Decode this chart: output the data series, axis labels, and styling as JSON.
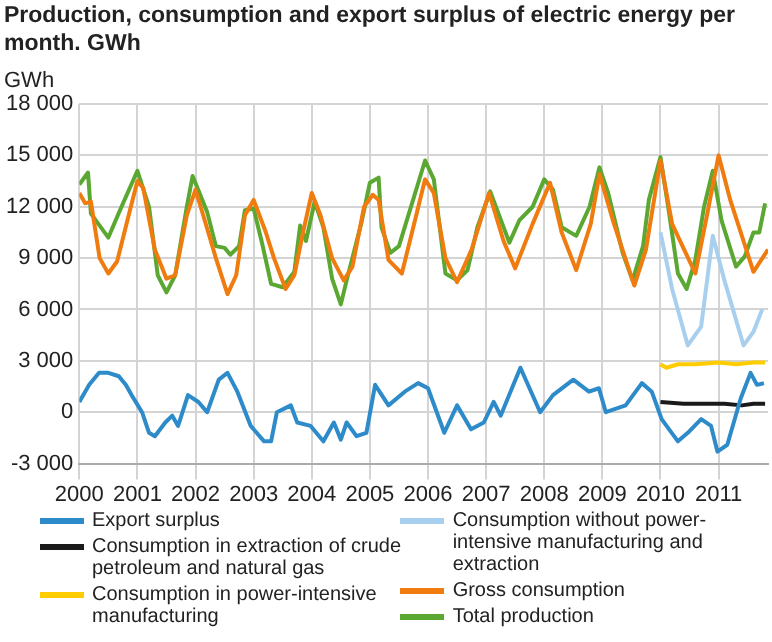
{
  "chart_data": {
    "type": "line",
    "title": "Production, consumption and export surplus of electric energy per month. GWh",
    "ylabel": "GWh",
    "xlim": [
      2000,
      2011.85
    ],
    "xticks": [
      2000,
      2001,
      2002,
      2003,
      2004,
      2005,
      2006,
      2007,
      2008,
      2009,
      2010,
      2011
    ],
    "ylim": [
      -3000,
      18000
    ],
    "yticks": [
      {
        "value": -3000,
        "label": "-3 000"
      },
      {
        "value": 0,
        "label": "0"
      },
      {
        "value": 3000,
        "label": "3 000"
      },
      {
        "value": 6000,
        "label": "6 000"
      },
      {
        "value": 9000,
        "label": "9 000"
      },
      {
        "value": 12000,
        "label": "12 000"
      },
      {
        "value": 15000,
        "label": "15 000"
      },
      {
        "value": 18000,
        "label": "18 000"
      }
    ],
    "grid": true,
    "legend": "bottom",
    "marker": "none",
    "line_style": "solid",
    "series": [
      {
        "name": "Export surplus",
        "color": "#2e8bc9",
        "x": [
          2000,
          2000.17,
          2000.34,
          2000.5,
          2000.68,
          2000.8,
          2000.9,
          2001.08,
          2001.2,
          2001.3,
          2001.48,
          2001.6,
          2001.7,
          2001.87,
          2002.05,
          2002.2,
          2002.4,
          2002.55,
          2002.72,
          2002.95,
          2003.18,
          2003.3,
          2003.4,
          2003.64,
          2003.75,
          2003.98,
          2004.2,
          2004.38,
          2004.5,
          2004.6,
          2004.77,
          2004.94,
          2005.09,
          2005.32,
          2005.6,
          2005.83,
          2006,
          2006.28,
          2006.5,
          2006.74,
          2006.96,
          2007.13,
          2007.25,
          2007.59,
          2007.93,
          2008.15,
          2008.5,
          2008.77,
          2008.94,
          2009.06,
          2009.4,
          2009.68,
          2009.85,
          2010.02,
          2010.3,
          2010.47,
          2010.7,
          2010.87,
          2010.98,
          2011.15,
          2011.38,
          2011.55,
          2011.66,
          2011.78
        ],
        "values": [
          600,
          1600,
          2300,
          2300,
          2100,
          1600,
          1000,
          0,
          -1200,
          -1400,
          -600,
          -200,
          -800,
          1000,
          600,
          0,
          1900,
          2300,
          1200,
          -800,
          -1700,
          -1700,
          0,
          400,
          -600,
          -800,
          -1700,
          -600,
          -1600,
          -600,
          -1400,
          -1200,
          1600,
          400,
          1200,
          1700,
          1400,
          -1200,
          400,
          -1000,
          -600,
          600,
          -200,
          2600,
          0,
          1000,
          1900,
          1200,
          1400,
          0,
          400,
          1700,
          1200,
          -400,
          -1700,
          -1200,
          -400,
          -800,
          -2300,
          -1900,
          800,
          2300,
          1600,
          1700
        ]
      },
      {
        "name": "Consumption in extraction of crude petroleum and natural gas",
        "color": "#1a1a1a",
        "x": [
          2010,
          2010.4,
          2010.7,
          2011.1,
          2011.4,
          2011.6,
          2011.8
        ],
        "values": [
          600,
          500,
          500,
          500,
          400,
          500,
          500
        ]
      },
      {
        "name": "Consumption in power-intensive manufacturing",
        "color": "#ffcc00",
        "x": [
          2010,
          2010.1,
          2010.3,
          2010.6,
          2011,
          2011.3,
          2011.6,
          2011.8
        ],
        "values": [
          2800,
          2600,
          2800,
          2800,
          2900,
          2800,
          2900,
          2900
        ]
      },
      {
        "name": "Consumption without power-intensive manufacturing and extraction",
        "color": "#a8d0ee",
        "x": [
          2010,
          2010.2,
          2010.47,
          2010.7,
          2010.9,
          2011.1,
          2011.43,
          2011.6,
          2011.75
        ],
        "values": [
          10500,
          7200,
          3900,
          5000,
          10300,
          7700,
          3900,
          4700,
          6000
        ]
      },
      {
        "name": "Gross consumption",
        "color": "#f07b0e",
        "x": [
          2000,
          2000.1,
          2000.2,
          2000.35,
          2000.5,
          2000.65,
          2000.85,
          2001,
          2001.1,
          2001.3,
          2001.5,
          2001.65,
          2001.85,
          2002,
          2002.15,
          2002.35,
          2002.55,
          2002.7,
          2002.85,
          2003,
          2003.2,
          2003.35,
          2003.55,
          2003.7,
          2003.85,
          2004,
          2004.15,
          2004.35,
          2004.55,
          2004.7,
          2004.9,
          2005.05,
          2005.15,
          2005.32,
          2005.55,
          2005.95,
          2006.1,
          2006.3,
          2006.5,
          2006.75,
          2007.05,
          2007.3,
          2007.5,
          2007.8,
          2008.1,
          2008.3,
          2008.55,
          2008.8,
          2008.95,
          2009.2,
          2009.55,
          2009.75,
          2010,
          2010.2,
          2010.6,
          2010.8,
          2011,
          2011.2,
          2011.6,
          2011.85
        ],
        "values": [
          12800,
          12200,
          12300,
          9000,
          8100,
          8800,
          11500,
          13500,
          13100,
          9500,
          7800,
          8000,
          11500,
          13000,
          11300,
          9000,
          6900,
          8000,
          11500,
          12400,
          10600,
          9000,
          7200,
          8000,
          10500,
          12800,
          11500,
          9000,
          7700,
          8500,
          12000,
          12700,
          12400,
          8900,
          8100,
          13600,
          12800,
          9000,
          7600,
          9500,
          12800,
          10000,
          8400,
          11000,
          13400,
          10500,
          8300,
          11000,
          13900,
          11000,
          7400,
          9500,
          14700,
          11000,
          8100,
          11500,
          15000,
          12400,
          8200,
          9500
        ]
      },
      {
        "name": "Total production",
        "color": "#5aa832",
        "x": [
          2000,
          2000.15,
          2000.2,
          2000.5,
          2000.7,
          2001,
          2001.2,
          2001.35,
          2001.5,
          2001.65,
          2001.85,
          2001.95,
          2002.2,
          2002.35,
          2002.5,
          2002.6,
          2002.75,
          2002.85,
          2003,
          2003.15,
          2003.3,
          2003.5,
          2003.7,
          2003.8,
          2003.9,
          2004.05,
          2004.2,
          2004.35,
          2004.5,
          2004.6,
          2004.85,
          2005,
          2005.15,
          2005.2,
          2005.35,
          2005.5,
          2005.95,
          2006.1,
          2006.3,
          2006.5,
          2006.68,
          2006.85,
          2007.07,
          2007.4,
          2007.57,
          2007.8,
          2008,
          2008.15,
          2008.3,
          2008.55,
          2008.78,
          2008.95,
          2009.1,
          2009.35,
          2009.52,
          2009.7,
          2009.8,
          2010,
          2010.15,
          2010.3,
          2010.45,
          2010.6,
          2010.75,
          2010.9,
          2011.05,
          2011.3,
          2011.45,
          2011.6,
          2011.7,
          2011.8
        ],
        "values": [
          13300,
          14000,
          11600,
          10200,
          11800,
          14100,
          12000,
          8000,
          7000,
          8000,
          12000,
          13800,
          11700,
          9700,
          9600,
          9200,
          9700,
          11800,
          11900,
          9800,
          7500,
          7300,
          8200,
          10900,
          10000,
          12300,
          10800,
          7800,
          6300,
          7700,
          11000,
          13400,
          13700,
          10800,
          9300,
          9700,
          14700,
          13600,
          8100,
          7700,
          8300,
          10800,
          12900,
          9900,
          11200,
          12000,
          13600,
          13000,
          10800,
          10300,
          12000,
          14300,
          12800,
          9300,
          7700,
          9700,
          12400,
          14900,
          11600,
          8100,
          7200,
          8900,
          12000,
          14100,
          11200,
          8500,
          9100,
          10500,
          10500,
          12200
        ]
      }
    ]
  }
}
